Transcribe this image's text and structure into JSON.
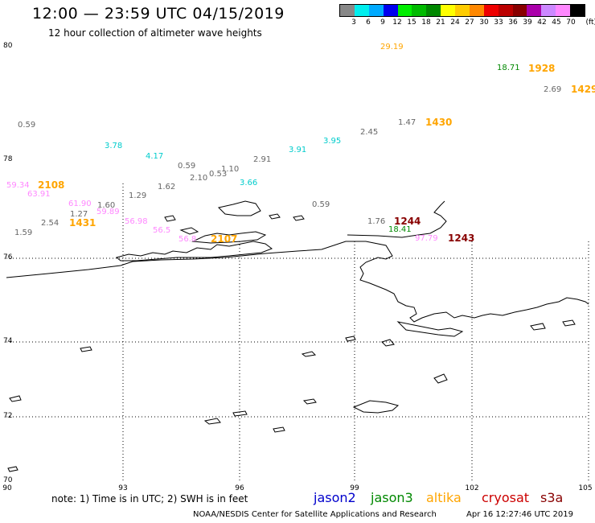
{
  "header": {
    "title": "12:00 — 23:59 UTC 04/15/2019",
    "subtitle": "12 hour collection of altimeter wave heights"
  },
  "legend": {
    "colors": [
      "#888888",
      "#00eeee",
      "#00aaff",
      "#0000ee",
      "#00ee00",
      "#00bb00",
      "#008800",
      "#ffff00",
      "#ffcc00",
      "#ff8800",
      "#ee0000",
      "#bb0000",
      "#880000",
      "#aa00aa",
      "#cc88ff",
      "#ff88ff",
      "#000000"
    ],
    "labels": [
      "3",
      "6",
      "9",
      "12",
      "15",
      "18",
      "21",
      "24",
      "27",
      "30",
      "33",
      "36",
      "39",
      "42",
      "45",
      "70"
    ],
    "unit": "(ft)"
  },
  "axes": {
    "lat_labels": [
      "80",
      "78",
      "76",
      "74",
      "72",
      "70"
    ],
    "lon_labels": [
      "90",
      "93",
      "96",
      "99",
      "102",
      "105"
    ]
  },
  "observations": [
    {
      "text": "29.19",
      "kind": "val",
      "color": "#ffa500"
    },
    {
      "text": "18.71",
      "kind": "val",
      "color": "#008800"
    },
    {
      "text": "1928",
      "kind": "time",
      "color": "#ffa500"
    },
    {
      "text": "2.69",
      "kind": "val",
      "color": "#666666"
    },
    {
      "text": "1429",
      "kind": "time",
      "color": "#ffa500"
    },
    {
      "text": "0.59",
      "kind": "val",
      "color": "#666666"
    },
    {
      "text": "1.47",
      "kind": "val",
      "color": "#666666"
    },
    {
      "text": "1430",
      "kind": "time",
      "color": "#ffa500"
    },
    {
      "text": "2.45",
      "kind": "val",
      "color": "#666666"
    },
    {
      "text": "3.95",
      "kind": "val",
      "color": "#00cccc"
    },
    {
      "text": "3.78",
      "kind": "val",
      "color": "#00cccc"
    },
    {
      "text": "3.91",
      "kind": "val",
      "color": "#00cccc"
    },
    {
      "text": "4.17",
      "kind": "val",
      "color": "#00cccc"
    },
    {
      "text": "2.91",
      "kind": "val",
      "color": "#666666"
    },
    {
      "text": "0.59",
      "kind": "val",
      "color": "#666666"
    },
    {
      "text": "1.10",
      "kind": "val",
      "color": "#666666"
    },
    {
      "text": "2.10",
      "kind": "val",
      "color": "#666666"
    },
    {
      "text": "0.53",
      "kind": "val",
      "color": "#666666"
    },
    {
      "text": "3.66",
      "kind": "val",
      "color": "#00cccc"
    },
    {
      "text": "1.62",
      "kind": "val",
      "color": "#666666"
    },
    {
      "text": "59.34",
      "kind": "val",
      "color": "#ff88ff"
    },
    {
      "text": "2108",
      "kind": "time",
      "color": "#ffa500"
    },
    {
      "text": "63.91",
      "kind": "val",
      "color": "#ff88ff"
    },
    {
      "text": "1.29",
      "kind": "val",
      "color": "#666666"
    },
    {
      "text": "61.90",
      "kind": "val",
      "color": "#ff88ff"
    },
    {
      "text": "1.60",
      "kind": "val",
      "color": "#666666"
    },
    {
      "text": "1.27",
      "kind": "val",
      "color": "#666666"
    },
    {
      "text": "59.89",
      "kind": "val",
      "color": "#ff88ff"
    },
    {
      "text": "0.59",
      "kind": "val",
      "color": "#666666"
    },
    {
      "text": "2.54",
      "kind": "val",
      "color": "#666666"
    },
    {
      "text": "1431",
      "kind": "time",
      "color": "#ffa500"
    },
    {
      "text": "56.98",
      "kind": "val",
      "color": "#ff88ff"
    },
    {
      "text": "1.76",
      "kind": "val",
      "color": "#666666"
    },
    {
      "text": "1244",
      "kind": "time",
      "color": "#880000"
    },
    {
      "text": "18.41",
      "kind": "val",
      "color": "#008800"
    },
    {
      "text": "1.59",
      "kind": "val",
      "color": "#666666"
    },
    {
      "text": "56.5",
      "kind": "val",
      "color": "#ff88ff"
    },
    {
      "text": "56.8",
      "kind": "val",
      "color": "#ff88ff"
    },
    {
      "text": "2107",
      "kind": "time",
      "color": "#ffa500"
    },
    {
      "text": "97.79",
      "kind": "val",
      "color": "#ff88ff"
    },
    {
      "text": "1243",
      "kind": "time",
      "color": "#880000"
    }
  ],
  "footer": {
    "note": "note:  1) Time is in UTC;  2) SWH is in feet",
    "missions": [
      {
        "name": "jason2",
        "color": "#0000cc"
      },
      {
        "name": "jason3",
        "color": "#008800"
      },
      {
        "name": "altika",
        "color": "#ffa500"
      },
      {
        "name": "cryosat",
        "color": "#cc0000"
      },
      {
        "name": "s3a",
        "color": "#880000"
      }
    ],
    "credit": "NOAA/NESDIS Center for Satellite Applications and Research",
    "timestamp": "Apr 16 12:27:46 UTC 2019"
  }
}
